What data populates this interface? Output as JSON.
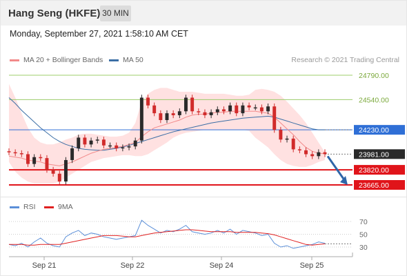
{
  "header": {
    "title": "Hang Seng (HKFE)",
    "timeframe": "30 MIN",
    "datetime": "Monday, September 27, 2021 1:58:10 AM CET"
  },
  "legend": {
    "items": [
      {
        "label": "MA 20 + Bollinger Bands",
        "color": "#f28a8a"
      },
      {
        "label": "MA 50",
        "color": "#3b6ea5"
      }
    ],
    "credit": "Research © 2021 Trading Central"
  },
  "rsi_legend": {
    "items": [
      {
        "label": "RSI",
        "color": "#5b8fd8"
      },
      {
        "label": "9MA",
        "color": "#e02020"
      }
    ]
  },
  "colors": {
    "resistance_line": "#9ccc6a",
    "pivot_line": "#2f6fd6",
    "support_line": "#e0141a",
    "bollinger_fill": "#ffe1e1",
    "ma20": "#f28a8a",
    "ma50": "#3b6ea5",
    "candle_up": "#2a2a2a",
    "candle_down": "#d12b2b",
    "arrow": "#2f66a8",
    "rsi": "#5b8fd8",
    "rsi_ma": "#e02020"
  },
  "chart_data": [
    {
      "type": "candlestick",
      "title": "",
      "x_ticks": [
        "Sep 21",
        "Sep 22",
        "Sep 24",
        "Sep 25"
      ],
      "y_ticks": [
        24790.0,
        24540.0,
        24230.0,
        23981.0,
        23820.0,
        23665.0
      ],
      "ylim": [
        23650,
        24800
      ],
      "levels": [
        {
          "value": 24790.0,
          "label": "24790.00",
          "kind": "resistance"
        },
        {
          "value": 24540.0,
          "label": "24540.00",
          "kind": "resistance"
        },
        {
          "value": 24230.0,
          "label": "24230.00",
          "kind": "pivot"
        },
        {
          "value": 23981.0,
          "label": "23981.00",
          "kind": "last"
        },
        {
          "value": 23820.0,
          "label": "23820.00",
          "kind": "support"
        },
        {
          "value": 23665.0,
          "label": "23665.00",
          "kind": "support"
        }
      ],
      "close_series": [
        24000,
        23990,
        23980,
        23880,
        23950,
        23940,
        23820,
        23780,
        23700,
        23920,
        24040,
        24150,
        24080,
        24120,
        24130,
        24070,
        24070,
        24040,
        24050,
        24060,
        24120,
        24560,
        24480,
        24400,
        24330,
        24400,
        24380,
        24420,
        24560,
        24420,
        24410,
        24380,
        24410,
        24440,
        24420,
        24480,
        24400,
        24480,
        24460,
        24460,
        24420,
        24470,
        24230,
        24130,
        24140,
        24030,
        24020,
        23980,
        23960,
        24000,
        23981
      ],
      "ma20_series": [
        23960,
        23950,
        23940,
        23920,
        23910,
        23900,
        23880,
        23870,
        23860,
        23880,
        23900,
        23930,
        23960,
        23990,
        24010,
        24030,
        24040,
        24050,
        24060,
        24080,
        24100,
        24160,
        24210,
        24250,
        24270,
        24290,
        24310,
        24330,
        24360,
        24380,
        24390,
        24390,
        24400,
        24410,
        24410,
        24420,
        24420,
        24420,
        24420,
        24420,
        24410,
        24400,
        24360,
        24300,
        24240,
        24180,
        24110,
        24050,
        24010,
        23990,
        23985
      ],
      "ma50_series": [
        24560,
        24500,
        24430,
        24370,
        24310,
        24250,
        24200,
        24150,
        24110,
        24080,
        24060,
        24040,
        24030,
        24025,
        24020,
        24020,
        24030,
        24040,
        24055,
        24070,
        24090,
        24110,
        24130,
        24150,
        24170,
        24190,
        24210,
        24225,
        24240,
        24255,
        24270,
        24285,
        24300,
        24310,
        24320,
        24330,
        24340,
        24350,
        24355,
        24360,
        24365,
        24370,
        24360,
        24340,
        24320,
        24300,
        24280,
        24260,
        24240,
        24230,
        24230
      ],
      "bb_upper": [
        24700,
        24560,
        24400,
        24250,
        24150,
        24100,
        24080,
        24080,
        24100,
        24130,
        24150,
        24180,
        24190,
        24190,
        24180,
        24170,
        24160,
        24160,
        24170,
        24200,
        24300,
        24520,
        24600,
        24640,
        24660,
        24660,
        24640,
        24620,
        24620,
        24620,
        24610,
        24600,
        24600,
        24600,
        24600,
        24590,
        24580,
        24580,
        24590,
        24640,
        24650,
        24640,
        24620,
        24580,
        24520,
        24450,
        24380,
        24300,
        24200,
        24100,
        24000
      ],
      "bb_lower": [
        23900,
        23800,
        23740,
        23700,
        23680,
        23680,
        23680,
        23680,
        23700,
        23740,
        23780,
        23820,
        23860,
        23900,
        23920,
        23940,
        23950,
        23960,
        23970,
        23970,
        23960,
        23960,
        23980,
        24020,
        24060,
        24100,
        24150,
        24180,
        24200,
        24210,
        24220,
        24230,
        24230,
        24230,
        24230,
        24230,
        24230,
        24230,
        24220,
        24150,
        24100,
        24050,
        23980,
        23920,
        23880,
        23860,
        23850,
        23850,
        23870,
        23900,
        23920
      ],
      "forecast_arrow": {
        "from": 23981.0,
        "to": 23665.0
      }
    },
    {
      "type": "line",
      "title": "",
      "y_ticks": [
        70,
        50,
        30
      ],
      "ylim": [
        20,
        80
      ],
      "series": [
        {
          "name": "RSI",
          "values": [
            34,
            32,
            36,
            30,
            38,
            44,
            36,
            32,
            30,
            46,
            52,
            56,
            48,
            52,
            50,
            46,
            44,
            42,
            44,
            46,
            48,
            72,
            64,
            58,
            52,
            56,
            54,
            58,
            64,
            54,
            52,
            50,
            52,
            56,
            52,
            58,
            50,
            56,
            54,
            52,
            48,
            50,
            36,
            30,
            32,
            28,
            30,
            32,
            34,
            38,
            36
          ]
        },
        {
          "name": "9MA",
          "values": [
            34,
            34,
            34,
            33,
            33,
            34,
            34,
            34,
            34,
            36,
            38,
            40,
            42,
            44,
            46,
            48,
            48,
            48,
            47,
            46,
            46,
            48,
            50,
            52,
            53,
            54,
            55,
            56,
            57,
            57,
            56,
            55,
            54,
            54,
            54,
            54,
            53,
            53,
            53,
            53,
            52,
            51,
            49,
            46,
            43,
            40,
            37,
            34,
            33,
            34,
            35
          ]
        }
      ]
    }
  ]
}
